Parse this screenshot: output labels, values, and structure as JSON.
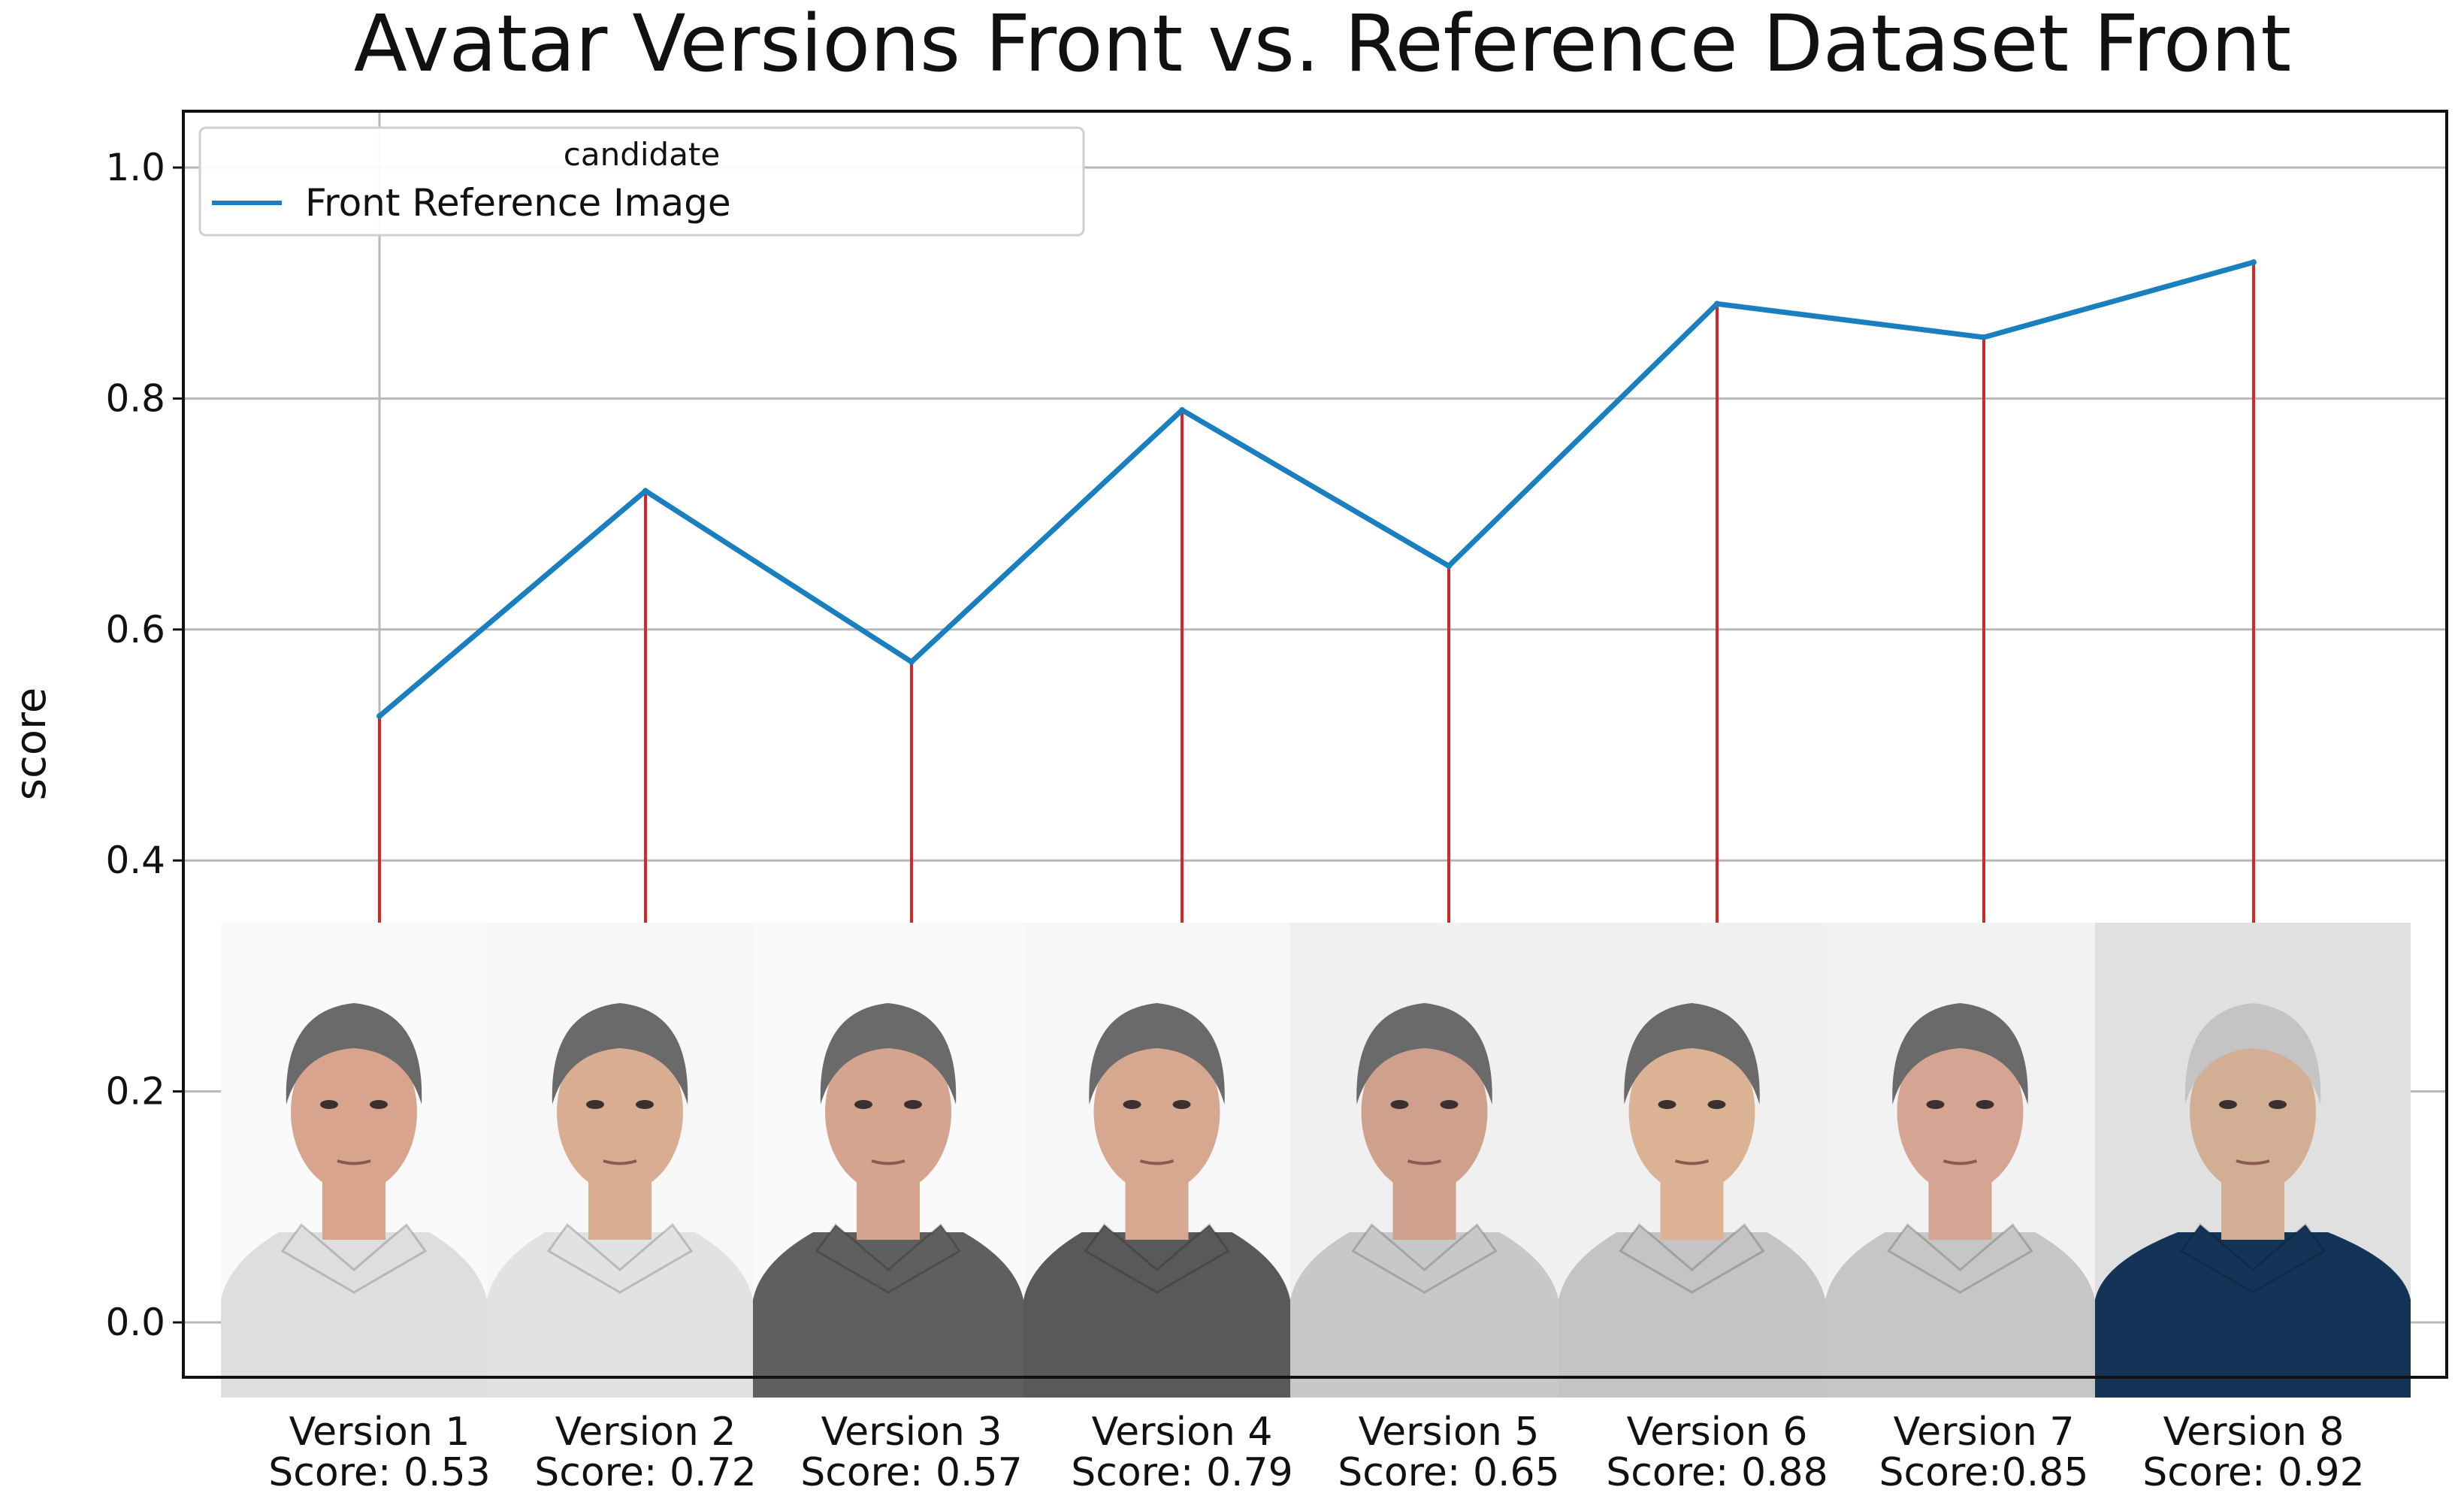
{
  "chart_data": {
    "type": "line",
    "title": "Avatar Versions Front vs. Reference Dataset Front",
    "xlabel": "",
    "ylabel": "score",
    "ylim": [
      -0.05,
      1.05
    ],
    "yticks": [
      "0.0",
      "0.2",
      "0.4",
      "0.6",
      "0.8",
      "1.0"
    ],
    "grid": true,
    "legend": {
      "title": "candidate",
      "placement": "top-left",
      "entries": [
        {
          "label": "Front Reference Image",
          "color": "#1a7fbf"
        }
      ]
    },
    "categories": [
      "Version 1",
      "Version 2",
      "Version 3",
      "Version 4",
      "Version 5",
      "Version 6",
      "Version 7",
      "Version 8"
    ],
    "score_labels": [
      "Score: 0.53",
      "Score: 0.72",
      "Score: 0.57",
      "Score: 0.79",
      "Score: 0.65",
      "Score: 0.88",
      "Score:0.85",
      "Score: 0.92"
    ],
    "series": [
      {
        "name": "Front Reference Image",
        "color": "#1a7fbf",
        "values": [
          0.525,
          0.72,
          0.572,
          0.79,
          0.655,
          0.882,
          0.853,
          0.918
        ]
      }
    ],
    "drop_line_color": "#d62728",
    "thumbnails": [
      {
        "shirt": "#dedede",
        "background": "#fafafa",
        "hair": "#6a6a6a",
        "skin": "#d8a48e"
      },
      {
        "shirt": "#e2e2e2",
        "background": "#f7f7f7",
        "hair": "#6a6a6a",
        "skin": "#d9ad92"
      },
      {
        "shirt": "#5f5f5f",
        "background": "#fafafa",
        "hair": "#6a6a6a",
        "skin": "#d4a48e"
      },
      {
        "shirt": "#595959",
        "background": "#f7f7f7",
        "hair": "#6a6a6a",
        "skin": "#d6a890"
      },
      {
        "shirt": "#c8c8c8",
        "background": "#f0f0f0",
        "hair": "#6a6a6a",
        "skin": "#cfa08c"
      },
      {
        "shirt": "#c4c4c4",
        "background": "#f0f0f0",
        "hair": "#6a6a6a",
        "skin": "#dbb394"
      },
      {
        "shirt": "#c6c6c6",
        "background": "#f2f2f2",
        "hair": "#6a6a6a",
        "skin": "#d6a492"
      },
      {
        "shirt": "#143457",
        "background": "#e0e0e0",
        "hair": "#c4c4c4",
        "skin": "#d2ae94"
      }
    ]
  }
}
